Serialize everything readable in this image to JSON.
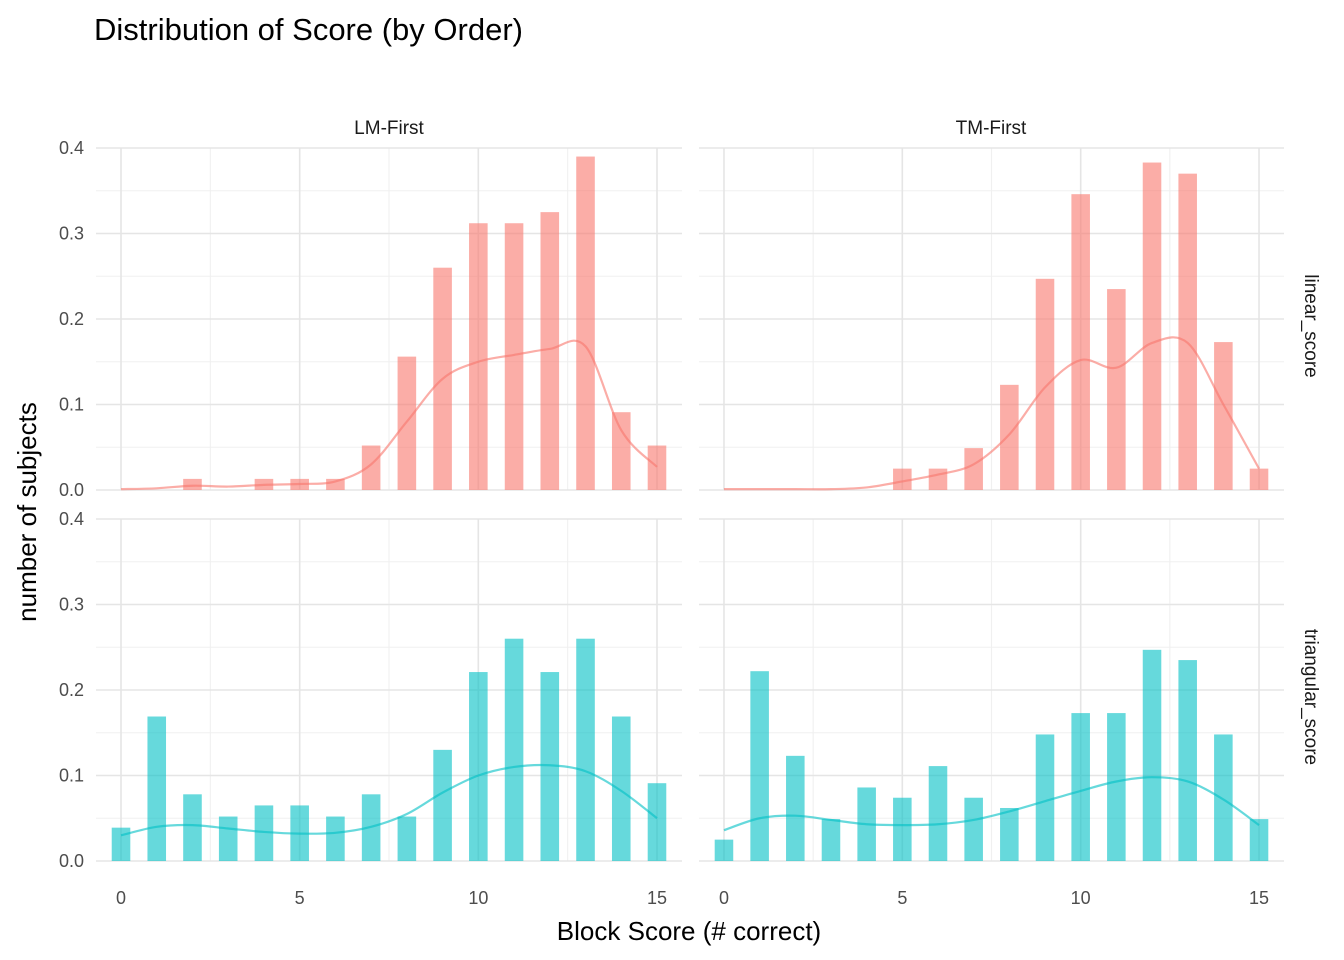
{
  "chart_data": {
    "type": "bar",
    "title": "Distribution of Score (by Order)",
    "xlabel": "Block Score (# correct)",
    "ylabel": "number of subjects",
    "xlim": [
      -0.7,
      15.7
    ],
    "ylim": [
      0,
      0.4
    ],
    "x_ticks": [
      0,
      5,
      10,
      15
    ],
    "y_ticks": [
      0.0,
      0.1,
      0.2,
      0.3,
      0.4
    ],
    "y_tick_labels": [
      "0.0",
      "0.1",
      "0.2",
      "0.3",
      "0.4"
    ],
    "grid": true,
    "legend": "none",
    "columns": [
      "LM-First",
      "TM-First"
    ],
    "rows": [
      "linear_score",
      "triangular_score"
    ],
    "colors": {
      "linear_score": "#F8766D",
      "triangular_score": "#00BFC4"
    },
    "panels": [
      {
        "column": "LM-First",
        "row": "linear_score",
        "x": [
          0,
          1,
          2,
          3,
          4,
          5,
          6,
          7,
          8,
          9,
          10,
          11,
          12,
          13,
          14,
          15
        ],
        "values": [
          0,
          0,
          0.013,
          0,
          0.013,
          0.013,
          0.013,
          0.052,
          0.156,
          0.26,
          0.312,
          0.312,
          0.325,
          0.39,
          0.091,
          0.052
        ],
        "density": [
          0.001,
          0.002,
          0.005,
          0.004,
          0.006,
          0.007,
          0.01,
          0.03,
          0.08,
          0.13,
          0.15,
          0.158,
          0.165,
          0.168,
          0.07,
          0.027
        ]
      },
      {
        "column": "TM-First",
        "row": "linear_score",
        "x": [
          0,
          1,
          2,
          3,
          4,
          5,
          6,
          7,
          8,
          9,
          10,
          11,
          12,
          13,
          14,
          15
        ],
        "values": [
          0,
          0,
          0,
          0,
          0,
          0.025,
          0.025,
          0.049,
          0.123,
          0.247,
          0.346,
          0.235,
          0.383,
          0.37,
          0.173,
          0.025
        ],
        "density": [
          0.001,
          0.001,
          0.001,
          0.001,
          0.003,
          0.01,
          0.018,
          0.03,
          0.065,
          0.12,
          0.152,
          0.143,
          0.172,
          0.172,
          0.1,
          0.025
        ]
      },
      {
        "column": "LM-First",
        "row": "triangular_score",
        "x": [
          0,
          1,
          2,
          3,
          4,
          5,
          6,
          7,
          8,
          9,
          10,
          11,
          12,
          13,
          14,
          15
        ],
        "values": [
          0.039,
          0.169,
          0.078,
          0.052,
          0.065,
          0.065,
          0.052,
          0.078,
          0.052,
          0.13,
          0.221,
          0.26,
          0.221,
          0.26,
          0.169,
          0.091
        ],
        "density": [
          0.03,
          0.04,
          0.042,
          0.038,
          0.034,
          0.032,
          0.033,
          0.04,
          0.055,
          0.08,
          0.1,
          0.11,
          0.112,
          0.105,
          0.082,
          0.05
        ]
      },
      {
        "column": "TM-First",
        "row": "triangular_score",
        "x": [
          0,
          1,
          2,
          3,
          4,
          5,
          6,
          7,
          8,
          9,
          10,
          11,
          12,
          13,
          14,
          15
        ],
        "values": [
          0.025,
          0.222,
          0.123,
          0.049,
          0.086,
          0.074,
          0.111,
          0.074,
          0.062,
          0.148,
          0.173,
          0.173,
          0.247,
          0.235,
          0.148,
          0.049
        ],
        "density": [
          0.036,
          0.05,
          0.053,
          0.048,
          0.043,
          0.042,
          0.043,
          0.048,
          0.058,
          0.07,
          0.082,
          0.093,
          0.098,
          0.093,
          0.072,
          0.042
        ]
      }
    ]
  }
}
